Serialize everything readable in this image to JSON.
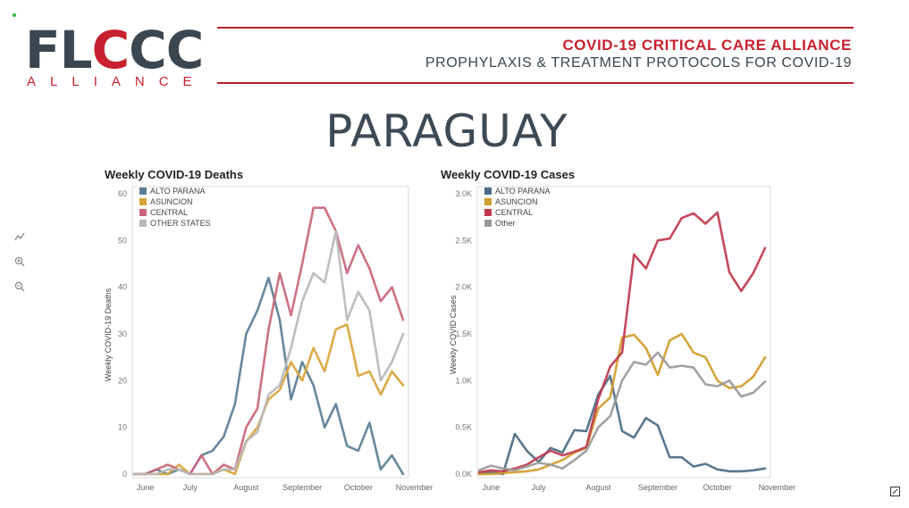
{
  "header": {
    "logo_main_a": "FL",
    "logo_main_b": "C",
    "logo_main_c": "CC",
    "logo_sub": "ALLIANCE",
    "tagline1": "COVID-19 CRITICAL CARE ALLIANCE",
    "tagline2": "PROPHYLAXIS & TREATMENT PROTOCOLS FOR COVID-19"
  },
  "page_title": "PARAGUAY",
  "icons": [
    "green-dot-icon",
    "chart-tool-icon",
    "zoom-in-icon",
    "zoom-out-icon",
    "expand-icon"
  ],
  "chart_data": [
    {
      "type": "line",
      "title": "Weekly COVID-19 Deaths",
      "ylabel": "Weekly COVID-19 Deaths",
      "ylim": [
        0,
        60
      ],
      "yticks": [
        0,
        10,
        20,
        30,
        40,
        50,
        60
      ],
      "ytick_labels": [
        "0",
        "10",
        "20",
        "30",
        "40",
        "50",
        "60"
      ],
      "xlabels": [
        "June",
        "July",
        "August",
        "September",
        "October",
        "November"
      ],
      "xlabel_positions": [
        1,
        5,
        10,
        15,
        20,
        25
      ],
      "legend_position": "top-left",
      "grid": false,
      "series": [
        {
          "name": "ALTO PARANA",
          "color": "#5b7e94",
          "values": [
            0,
            0,
            1,
            0,
            1,
            0,
            4,
            5,
            8,
            15,
            30,
            35,
            42,
            33,
            16,
            24,
            19,
            10,
            15,
            6,
            5,
            11,
            1,
            4,
            0
          ]
        },
        {
          "name": "ASUNCION",
          "color": "#d8a53a",
          "values": [
            0,
            0,
            0,
            0,
            2,
            0,
            0,
            0,
            1,
            0,
            7,
            10,
            16,
            18,
            24,
            20,
            27,
            22,
            31,
            32,
            21,
            22,
            17,
            22,
            19
          ]
        },
        {
          "name": "CENTRAL",
          "color": "#c9667a",
          "values": [
            0,
            0,
            1,
            2,
            1,
            0,
            4,
            0,
            2,
            1,
            10,
            14,
            31,
            43,
            34,
            45,
            57,
            57,
            52,
            43,
            49,
            44,
            37,
            40,
            33
          ]
        },
        {
          "name": "OTHER STATES",
          "color": "#b8b8b8",
          "values": [
            0,
            0,
            0,
            1,
            1,
            0,
            0,
            0,
            1,
            1,
            7,
            9,
            17,
            19,
            27,
            37,
            43,
            41,
            52,
            33,
            39,
            35,
            20,
            24,
            30
          ]
        }
      ]
    },
    {
      "type": "line",
      "title": "Weekly COVID-19 Cases",
      "ylabel": "Weekly COVID Cases",
      "ylim": [
        0,
        3000
      ],
      "yticks": [
        0,
        500,
        1000,
        1500,
        2000,
        2500,
        3000
      ],
      "ytick_labels": [
        "0.0K",
        "0.5K",
        "1.0K",
        "1.5K",
        "2.0K",
        "2.5K",
        "3.0K"
      ],
      "xlabels": [
        "June",
        "July",
        "August",
        "September",
        "October",
        "November"
      ],
      "xlabel_positions": [
        1,
        5,
        10,
        15,
        20,
        25
      ],
      "legend_position": "top-left",
      "grid": false,
      "series": [
        {
          "name": "ALTO PARANA",
          "color": "#4b6c85",
          "values": [
            0,
            20,
            0,
            430,
            250,
            130,
            280,
            230,
            470,
            460,
            850,
            1050,
            460,
            390,
            600,
            520,
            180,
            180,
            80,
            110,
            50,
            30,
            30,
            40,
            60
          ]
        },
        {
          "name": "ASUNCION",
          "color": "#d39c2e",
          "values": [
            0,
            0,
            10,
            20,
            30,
            50,
            100,
            150,
            230,
            280,
            700,
            820,
            1460,
            1490,
            1350,
            1060,
            1430,
            1500,
            1300,
            1250,
            1000,
            920,
            940,
            1040,
            1250
          ]
        },
        {
          "name": "CENTRAL",
          "color": "#c0394f",
          "values": [
            20,
            40,
            30,
            60,
            100,
            180,
            250,
            200,
            240,
            290,
            800,
            1150,
            1300,
            2350,
            2200,
            2500,
            2520,
            2740,
            2790,
            2680,
            2800,
            2160,
            1960,
            2150,
            2420
          ]
        },
        {
          "name": "Other",
          "color": "#9a9a9a",
          "values": [
            40,
            90,
            60,
            40,
            80,
            120,
            100,
            60,
            150,
            250,
            500,
            620,
            1000,
            1200,
            1170,
            1300,
            1140,
            1160,
            1140,
            960,
            940,
            1000,
            830,
            870,
            990
          ]
        }
      ]
    }
  ]
}
